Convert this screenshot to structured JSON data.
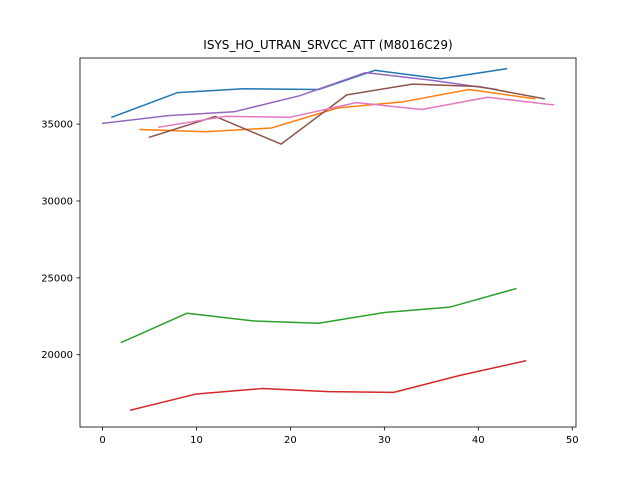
{
  "chart_data": {
    "type": "line",
    "title": "ISYS_HO_UTRAN_SRVCC_ATT (M8016C29)",
    "xlabel": "",
    "ylabel": "",
    "xlim": [
      -2.4,
      50.4
    ],
    "ylim": [
      15300,
      39300
    ],
    "xticks": [
      0,
      10,
      20,
      30,
      40,
      50
    ],
    "yticks": [
      20000,
      25000,
      30000,
      35000
    ],
    "grid": false,
    "series": [
      {
        "color": "#1f77b4",
        "x": [
          1,
          8,
          15,
          23,
          29,
          36,
          43
        ],
        "y": [
          35450,
          37050,
          37300,
          37250,
          38500,
          37950,
          38600
        ]
      },
      {
        "color": "#ff7f0e",
        "x": [
          4,
          11,
          18,
          25,
          32,
          39,
          46
        ],
        "y": [
          34650,
          34500,
          34750,
          36050,
          36450,
          37250,
          36650
        ]
      },
      {
        "color": "#2ca02c",
        "x": [
          2,
          9,
          16,
          23,
          30,
          37,
          44
        ],
        "y": [
          20800,
          22700,
          22200,
          22050,
          22750,
          23100,
          24300
        ]
      },
      {
        "color": "#d62728",
        "x": [
          3,
          10,
          17,
          24,
          31,
          38,
          45
        ],
        "y": [
          16400,
          17450,
          17800,
          17600,
          17550,
          18650,
          19600
        ]
      },
      {
        "color": "#9467bd",
        "x": [
          0,
          7,
          14,
          21,
          28,
          35,
          42
        ],
        "y": [
          35050,
          35550,
          35800,
          36850,
          38350,
          37850,
          37250
        ]
      },
      {
        "color": "#8c564b",
        "x": [
          5,
          12,
          19,
          26,
          33,
          40,
          47
        ],
        "y": [
          34150,
          35500,
          33700,
          36900,
          37600,
          37450,
          36650
        ]
      },
      {
        "color": "#e377c2",
        "x": [
          6,
          13,
          20,
          27,
          34,
          41,
          48
        ],
        "y": [
          34800,
          35500,
          35450,
          36400,
          35950,
          36750,
          36250
        ]
      }
    ]
  }
}
